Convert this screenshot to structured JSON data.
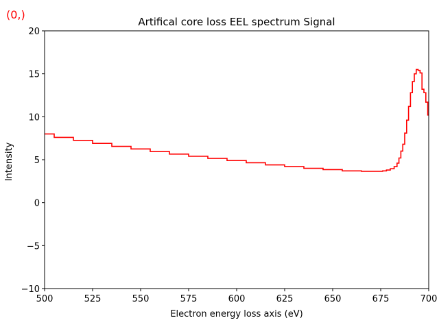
{
  "corner_label": "(0,)",
  "corner_color": "#ff0000",
  "chart_data": {
    "type": "line",
    "drawstyle": "steps-mid",
    "title": "Artifical core loss EEL spectrum Signal",
    "xlabel": "Electron energy loss axis (eV)",
    "ylabel": "Intensity",
    "xlim": [
      500,
      700
    ],
    "ylim": [
      -10,
      20
    ],
    "xticks": [
      500,
      525,
      550,
      575,
      600,
      625,
      650,
      675,
      700
    ],
    "yticks": [
      -10,
      -5,
      0,
      5,
      10,
      15,
      20
    ],
    "grid": false,
    "series": [
      {
        "color": "#ff0000",
        "x": [
          500,
          510,
          520,
          530,
          540,
          550,
          560,
          570,
          580,
          590,
          600,
          610,
          620,
          630,
          640,
          650,
          660,
          670,
          675,
          677,
          679,
          681,
          683,
          684,
          685,
          686,
          687,
          688,
          689,
          690,
          691,
          692,
          693,
          694,
          695,
          696,
          697,
          698,
          699,
          700
        ],
        "y": [
          8.0,
          7.6,
          7.25,
          6.9,
          6.55,
          6.25,
          5.95,
          5.65,
          5.4,
          5.15,
          4.9,
          4.65,
          4.4,
          4.2,
          4.0,
          3.85,
          3.7,
          3.65,
          3.65,
          3.7,
          3.8,
          3.95,
          4.2,
          4.6,
          5.2,
          6.0,
          6.8,
          8.1,
          9.6,
          11.2,
          12.8,
          14.1,
          15.0,
          15.5,
          15.4,
          15.1,
          13.2,
          12.8,
          11.7,
          10.2
        ]
      }
    ]
  }
}
